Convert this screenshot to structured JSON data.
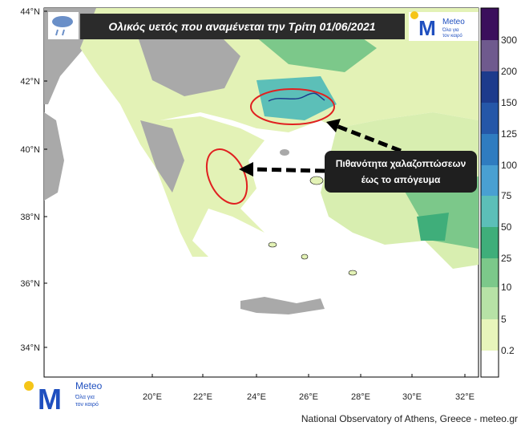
{
  "header": {
    "title": "Ολικός υετός που αναμένεται την Τρίτη 01/06/2021"
  },
  "annotation": {
    "lines": [
      "Πιθανότητα χαλαζοπτώσεων",
      "έως το απόγευμα"
    ]
  },
  "logo_top": {
    "name": "Meteo",
    "tagline": [
      "Όλα για",
      "τον καιρό"
    ]
  },
  "logo_bottom": {
    "name": "Meteo",
    "tagline": [
      "Όλα για",
      "τον καιρό"
    ]
  },
  "lat_labels": [
    "44°N",
    "42°N",
    "40°N",
    "38°N",
    "36°N",
    "34°N"
  ],
  "lon_labels": [
    "20°E",
    "22°E",
    "24°E",
    "26°E",
    "28°E",
    "30°E",
    "32°E"
  ],
  "colorbar": {
    "labels": [
      "300",
      "200",
      "150",
      "125",
      "100",
      "75",
      "50",
      "25",
      "10",
      "5",
      "0.2"
    ],
    "colors": [
      "#3b0f5c",
      "#6f5a8e",
      "#1d3b8c",
      "#2557a8",
      "#2f7cc0",
      "#49a0d2",
      "#5cbfb8",
      "#3fae7a",
      "#7cc88a",
      "#b7e2a6",
      "#e8f5bb",
      "#ffffff"
    ]
  },
  "credit": "National Observatory of Athens, Greece - meteo.gr"
}
